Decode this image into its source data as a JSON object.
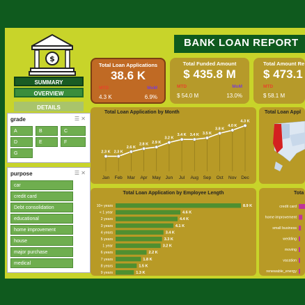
{
  "header": {
    "title": "BANK LOAN REPORT"
  },
  "nav": {
    "summary": "SUMMARY",
    "overview": "OVERVIEW",
    "details": "DETAILS"
  },
  "grade_slicer": {
    "title": "grade",
    "items": [
      "A",
      "B",
      "C",
      "D",
      "E",
      "F",
      "G"
    ]
  },
  "purpose_slicer": {
    "title": "purpose",
    "items": [
      "car",
      "credit card",
      "Debt consolidation",
      "educational",
      "home improvement",
      "house",
      "major purchase",
      "medical"
    ]
  },
  "kpis": [
    {
      "label": "Total Loan Applications",
      "value": "38.6 K",
      "mtd_label": "MTD",
      "mom_label": "MoM",
      "mtd": "4.3 K",
      "mom": "6.9%"
    },
    {
      "label": "Total Funded Amount",
      "value": "$ 435.8 M",
      "mtd_label": "MTD",
      "mom_label": "MoM",
      "mtd": "$ 54.0 M",
      "mom": "13.0%"
    },
    {
      "label": "Total Amount Re",
      "value": "$ 473.1",
      "mtd_label": "MTD",
      "mom_label": "",
      "mtd": "$ 58.1 M",
      "mom": ""
    }
  ],
  "colors": {
    "mtd": "#e8432a",
    "mom": "#7a3fd0"
  },
  "chart_data": [
    {
      "type": "line",
      "title": "Total Loan Application by Month",
      "categories": [
        "Jan",
        "Feb",
        "Mar",
        "Apr",
        "May",
        "Jun",
        "Jul",
        "Aug",
        "Sep",
        "Oct",
        "Nov",
        "Dec"
      ],
      "values": [
        2.3,
        2.3,
        2.6,
        2.8,
        2.9,
        3.2,
        3.4,
        3.4,
        3.5,
        3.8,
        4.0,
        4.3
      ],
      "labels": [
        "2.3 K",
        "2.3 K",
        "2.6 K",
        "2.8 K",
        "2.9 K",
        "3.2 K",
        "3.4 K",
        "3.4 K",
        "3.5 K",
        "3.8 K",
        "4.0 K",
        "4.3 K"
      ],
      "ylim": [
        1.5,
        4.5
      ]
    },
    {
      "type": "bar",
      "title": "Total Loan Application by Employee Length",
      "categories": [
        "10+ years",
        "< 1 year",
        "2 years",
        "3 years",
        "4 years",
        "5 years",
        "1 year",
        "6 years",
        "7 years",
        "8 years",
        "9 years"
      ],
      "values": [
        8.9,
        4.6,
        4.4,
        4.1,
        3.4,
        3.3,
        3.2,
        2.2,
        1.8,
        1.5,
        1.3
      ],
      "labels": [
        "8.9 K",
        "4.6 K",
        "4.4 K",
        "4.1 K",
        "3.4 K",
        "3.3 K",
        "3.2 K",
        "2.2 K",
        "1.8 K",
        "1.5 K",
        "1.3 K"
      ],
      "xlim": [
        0,
        9
      ]
    },
    {
      "type": "bar",
      "title": "Tota",
      "categories": [
        "credit card",
        "home improvement",
        "small business",
        "wedding",
        "moving",
        "vacation",
        "renewable_energy"
      ],
      "values": [
        5.0,
        2.9,
        1.8,
        0.9,
        0.6,
        0.4,
        0.1
      ]
    }
  ],
  "map": {
    "title": "Total Loan Appl"
  }
}
